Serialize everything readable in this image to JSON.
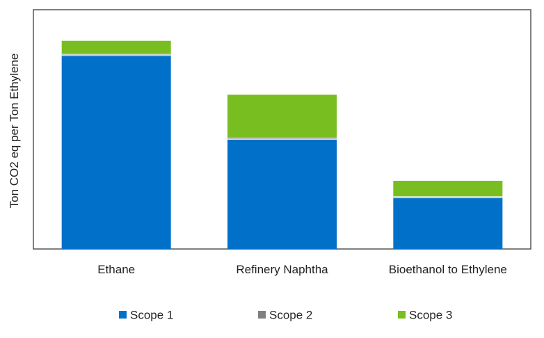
{
  "chart_data": {
    "type": "bar",
    "stacked": true,
    "title": "",
    "xlabel": "",
    "ylabel": "Ton CO2 eq per Ton Ethylene",
    "categories": [
      "Ethane",
      "Refinery Naphtha",
      "Bioethanol to Ethylene"
    ],
    "series": [
      {
        "name": "Scope 1",
        "color": "#0070C8",
        "values": [
          8.1,
          4.6,
          2.15
        ]
      },
      {
        "name": "Scope 2",
        "color": "#808080",
        "values": [
          0.05,
          0.05,
          0.05
        ]
      },
      {
        "name": "Scope 3",
        "color": "#78BE20",
        "values": [
          0.55,
          1.8,
          0.65
        ]
      }
    ],
    "ylim": [
      0,
      10
    ],
    "grid": false,
    "y_ticks_shown": false,
    "legend": {
      "position": "bottom"
    }
  }
}
